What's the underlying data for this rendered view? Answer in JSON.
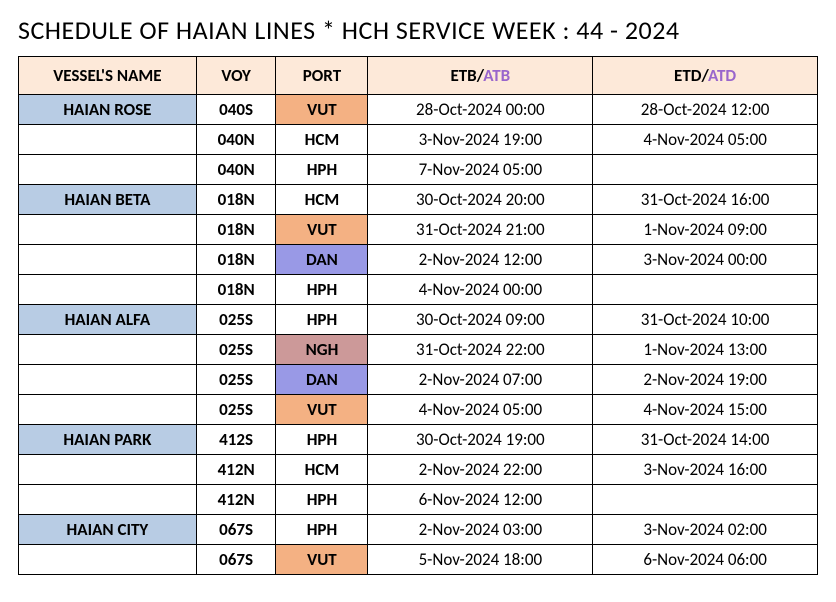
{
  "title": "SCHEDULE OF HAIAN LINES * HCH SERVICE WEEK : 44 - 2024",
  "colors": {
    "header_bg": "#fde9d9",
    "vessel_bg": "#b8cce4",
    "port_orange": "#f4b183",
    "port_purple": "#9999e6",
    "port_pink": "#cc9999",
    "atb_color": "#9966cc",
    "text": "#000000",
    "border": "#000000",
    "background": "#ffffff"
  },
  "headers": {
    "vessel": "VESSEL'S NAME",
    "voy": "VOY",
    "port": "PORT",
    "etb_prefix": "ETB/",
    "etb_suffix": "ATB",
    "etd_prefix": "ETD/",
    "etd_suffix": "ATD"
  },
  "rows": [
    {
      "vessel": "HAIAN ROSE",
      "vessel_bg": "#b8cce4",
      "voy": "040S",
      "port": "VUT",
      "port_bg": "#f4b183",
      "etb": "28-Oct-2024 00:00",
      "etd": "28-Oct-2024 12:00"
    },
    {
      "vessel": "",
      "vessel_bg": "",
      "voy": "040N",
      "port": "HCM",
      "port_bg": "",
      "etb": "3-Nov-2024 19:00",
      "etd": "4-Nov-2024 05:00"
    },
    {
      "vessel": "",
      "vessel_bg": "",
      "voy": "040N",
      "port": "HPH",
      "port_bg": "",
      "etb": "7-Nov-2024 05:00",
      "etd": ""
    },
    {
      "vessel": "HAIAN BETA",
      "vessel_bg": "#b8cce4",
      "voy": "018N",
      "port": "HCM",
      "port_bg": "",
      "etb": "30-Oct-2024 20:00",
      "etd": "31-Oct-2024 16:00"
    },
    {
      "vessel": "",
      "vessel_bg": "",
      "voy": "018N",
      "port": "VUT",
      "port_bg": "#f4b183",
      "etb": "31-Oct-2024 21:00",
      "etd": "1-Nov-2024 09:00"
    },
    {
      "vessel": "",
      "vessel_bg": "",
      "voy": "018N",
      "port": "DAN",
      "port_bg": "#9999e6",
      "etb": "2-Nov-2024 12:00",
      "etd": "3-Nov-2024 00:00"
    },
    {
      "vessel": "",
      "vessel_bg": "",
      "voy": "018N",
      "port": "HPH",
      "port_bg": "",
      "etb": "4-Nov-2024 00:00",
      "etd": ""
    },
    {
      "vessel": "HAIAN ALFA",
      "vessel_bg": "#b8cce4",
      "voy": "025S",
      "port": "HPH",
      "port_bg": "",
      "etb": "30-Oct-2024 09:00",
      "etd": "31-Oct-2024 10:00"
    },
    {
      "vessel": "",
      "vessel_bg": "",
      "voy": "025S",
      "port": "NGH",
      "port_bg": "#cc9999",
      "etb": "31-Oct-2024 22:00",
      "etd": "1-Nov-2024 13:00"
    },
    {
      "vessel": "",
      "vessel_bg": "",
      "voy": "025S",
      "port": "DAN",
      "port_bg": "#9999e6",
      "etb": "2-Nov-2024 07:00",
      "etd": "2-Nov-2024 19:00"
    },
    {
      "vessel": "",
      "vessel_bg": "",
      "voy": "025S",
      "port": "VUT",
      "port_bg": "#f4b183",
      "etb": "4-Nov-2024 05:00",
      "etd": "4-Nov-2024 15:00"
    },
    {
      "vessel": "HAIAN PARK",
      "vessel_bg": "#b8cce4",
      "voy": "412S",
      "port": "HPH",
      "port_bg": "",
      "etb": "30-Oct-2024 19:00",
      "etd": "31-Oct-2024 14:00"
    },
    {
      "vessel": "",
      "vessel_bg": "",
      "voy": "412N",
      "port": "HCM",
      "port_bg": "",
      "etb": "2-Nov-2024 22:00",
      "etd": "3-Nov-2024 16:00"
    },
    {
      "vessel": "",
      "vessel_bg": "",
      "voy": "412N",
      "port": "HPH",
      "port_bg": "",
      "etb": "6-Nov-2024 12:00",
      "etd": ""
    },
    {
      "vessel": "HAIAN CITY",
      "vessel_bg": "#b8cce4",
      "voy": "067S",
      "port": "HPH",
      "port_bg": "",
      "etb": "2-Nov-2024 03:00",
      "etd": "3-Nov-2024 02:00"
    },
    {
      "vessel": "",
      "vessel_bg": "",
      "voy": "067S",
      "port": "VUT",
      "port_bg": "#f4b183",
      "etb": "5-Nov-2024 18:00",
      "etd": "6-Nov-2024 06:00"
    }
  ]
}
